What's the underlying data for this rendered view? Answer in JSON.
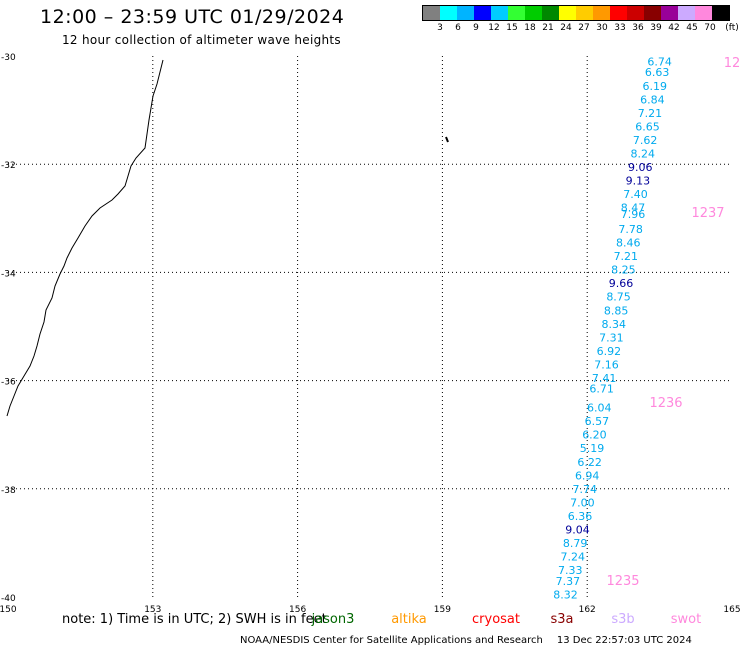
{
  "header": {
    "title": "12:00 – 23:59 UTC 01/29/2024",
    "subtitle": "12 hour collection of altimeter wave heights"
  },
  "legend": {
    "unit": "(ft)",
    "colors": [
      "#808080",
      "#00ffff",
      "#00b4ff",
      "#0000ff",
      "#00ccff",
      "#33ff33",
      "#00cc00",
      "#008800",
      "#ffff00",
      "#ffcc00",
      "#ff9900",
      "#ff0000",
      "#cc0000",
      "#880000",
      "#990099",
      "#ccaaff",
      "#ff88dd",
      "#000000"
    ],
    "ticks": [
      "3",
      "6",
      "9",
      "12",
      "15",
      "18",
      "21",
      "24",
      "27",
      "30",
      "33",
      "36",
      "39",
      "42",
      "45",
      "70"
    ]
  },
  "map": {
    "lon_range": [
      150,
      165
    ],
    "lat_range": [
      -40,
      -30
    ],
    "lon_ticks": [
      "150",
      "153",
      "156",
      "159",
      "162",
      "165"
    ],
    "lat_ticks": [
      "-30",
      "-32",
      "-34",
      "-36",
      "-38",
      "-40"
    ],
    "pass_labels": [
      {
        "text": "1235",
        "color": "#ff88dd"
      },
      {
        "text": "1236",
        "color": "#ff88dd"
      },
      {
        "text": "1237",
        "color": "#ff88dd"
      },
      {
        "text": "12",
        "color": "#ff88dd"
      }
    ],
    "wave_heights": [
      {
        "lat": -30.1,
        "lon": 163.5,
        "text": "6.74",
        "color": "#00aaee"
      },
      {
        "lat": -30.3,
        "lon": 163.45,
        "text": "6.63",
        "color": "#00aaee"
      },
      {
        "lat": -30.55,
        "lon": 163.4,
        "text": "6.19",
        "color": "#00aaee"
      },
      {
        "lat": -30.8,
        "lon": 163.35,
        "text": "6.84",
        "color": "#00aaee"
      },
      {
        "lat": -31.05,
        "lon": 163.3,
        "text": "7.21",
        "color": "#00aaee"
      },
      {
        "lat": -31.3,
        "lon": 163.25,
        "text": "6.65",
        "color": "#00aaee"
      },
      {
        "lat": -31.55,
        "lon": 163.2,
        "text": "7.62",
        "color": "#00aaee"
      },
      {
        "lat": -31.8,
        "lon": 163.15,
        "text": "8.24",
        "color": "#00aaee"
      },
      {
        "lat": -32.05,
        "lon": 163.1,
        "text": "9.06",
        "color": "#000099"
      },
      {
        "lat": -32.3,
        "lon": 163.05,
        "text": "9.13",
        "color": "#000099"
      },
      {
        "lat": -32.55,
        "lon": 163.0,
        "text": "7.40",
        "color": "#00aaee"
      },
      {
        "lat": -32.8,
        "lon": 162.95,
        "text": "8.47",
        "color": "#00aaee"
      },
      {
        "lat": -32.92,
        "lon": 162.95,
        "text": "7.96",
        "color": "#00aaee"
      },
      {
        "lat": -33.2,
        "lon": 162.9,
        "text": "7.78",
        "color": "#00aaee"
      },
      {
        "lat": -33.45,
        "lon": 162.85,
        "text": "8.46",
        "color": "#00aaee"
      },
      {
        "lat": -33.7,
        "lon": 162.8,
        "text": "7.21",
        "color": "#00aaee"
      },
      {
        "lat": -33.95,
        "lon": 162.75,
        "text": "8.25",
        "color": "#00aaee"
      },
      {
        "lat": -34.2,
        "lon": 162.7,
        "text": "9.66",
        "color": "#000099"
      },
      {
        "lat": -34.45,
        "lon": 162.65,
        "text": "8.75",
        "color": "#00aaee"
      },
      {
        "lat": -34.7,
        "lon": 162.6,
        "text": "8.85",
        "color": "#00aaee"
      },
      {
        "lat": -34.95,
        "lon": 162.55,
        "text": "8.34",
        "color": "#00aaee"
      },
      {
        "lat": -35.2,
        "lon": 162.5,
        "text": "7.31",
        "color": "#00aaee"
      },
      {
        "lat": -35.45,
        "lon": 162.45,
        "text": "6.92",
        "color": "#00aaee"
      },
      {
        "lat": -35.7,
        "lon": 162.4,
        "text": "7.16",
        "color": "#00aaee"
      },
      {
        "lat": -35.95,
        "lon": 162.35,
        "text": "7.41",
        "color": "#00aaee"
      },
      {
        "lat": -36.15,
        "lon": 162.3,
        "text": "6.71",
        "color": "#00aaee"
      },
      {
        "lat": -36.5,
        "lon": 162.25,
        "text": "6.04",
        "color": "#00aaee"
      },
      {
        "lat": -36.75,
        "lon": 162.2,
        "text": "6.57",
        "color": "#00aaee"
      },
      {
        "lat": -37.0,
        "lon": 162.15,
        "text": "6.20",
        "color": "#00aaee"
      },
      {
        "lat": -37.25,
        "lon": 162.1,
        "text": "5.19",
        "color": "#00aaee"
      },
      {
        "lat": -37.5,
        "lon": 162.05,
        "text": "6.22",
        "color": "#00aaee"
      },
      {
        "lat": -37.75,
        "lon": 162.0,
        "text": "6.94",
        "color": "#00aaee"
      },
      {
        "lat": -38.0,
        "lon": 161.95,
        "text": "7.74",
        "color": "#00aaee"
      },
      {
        "lat": -38.25,
        "lon": 161.9,
        "text": "7.00",
        "color": "#00aaee"
      },
      {
        "lat": -38.5,
        "lon": 161.85,
        "text": "6.36",
        "color": "#00aaee"
      },
      {
        "lat": -38.75,
        "lon": 161.8,
        "text": "9.04",
        "color": "#000099"
      },
      {
        "lat": -39.0,
        "lon": 161.75,
        "text": "8.79",
        "color": "#00aaee"
      },
      {
        "lat": -39.25,
        "lon": 161.7,
        "text": "7.24",
        "color": "#00aaee"
      },
      {
        "lat": -39.5,
        "lon": 161.65,
        "text": "7.33",
        "color": "#00aaee"
      },
      {
        "lat": -39.7,
        "lon": 161.6,
        "text": "7.37",
        "color": "#00aaee"
      },
      {
        "lat": -39.95,
        "lon": 161.55,
        "text": "8.32",
        "color": "#00aaee"
      }
    ]
  },
  "note": "note: 1) Time is in UTC; 2) SWH is in feet",
  "missions": [
    {
      "name": "jason3",
      "color": "#006600"
    },
    {
      "name": "altika",
      "color": "#ff9900"
    },
    {
      "name": "cryosat",
      "color": "#ff0000"
    },
    {
      "name": "s3a",
      "color": "#880000"
    },
    {
      "name": "s3b",
      "color": "#ccaaff"
    },
    {
      "name": "swot",
      "color": "#ff88dd"
    }
  ],
  "footer": {
    "credit": "NOAA/NESDIS Center for Satellite Applications and Research",
    "timestamp": "13 Dec 22:57:03 UTC 2024"
  }
}
